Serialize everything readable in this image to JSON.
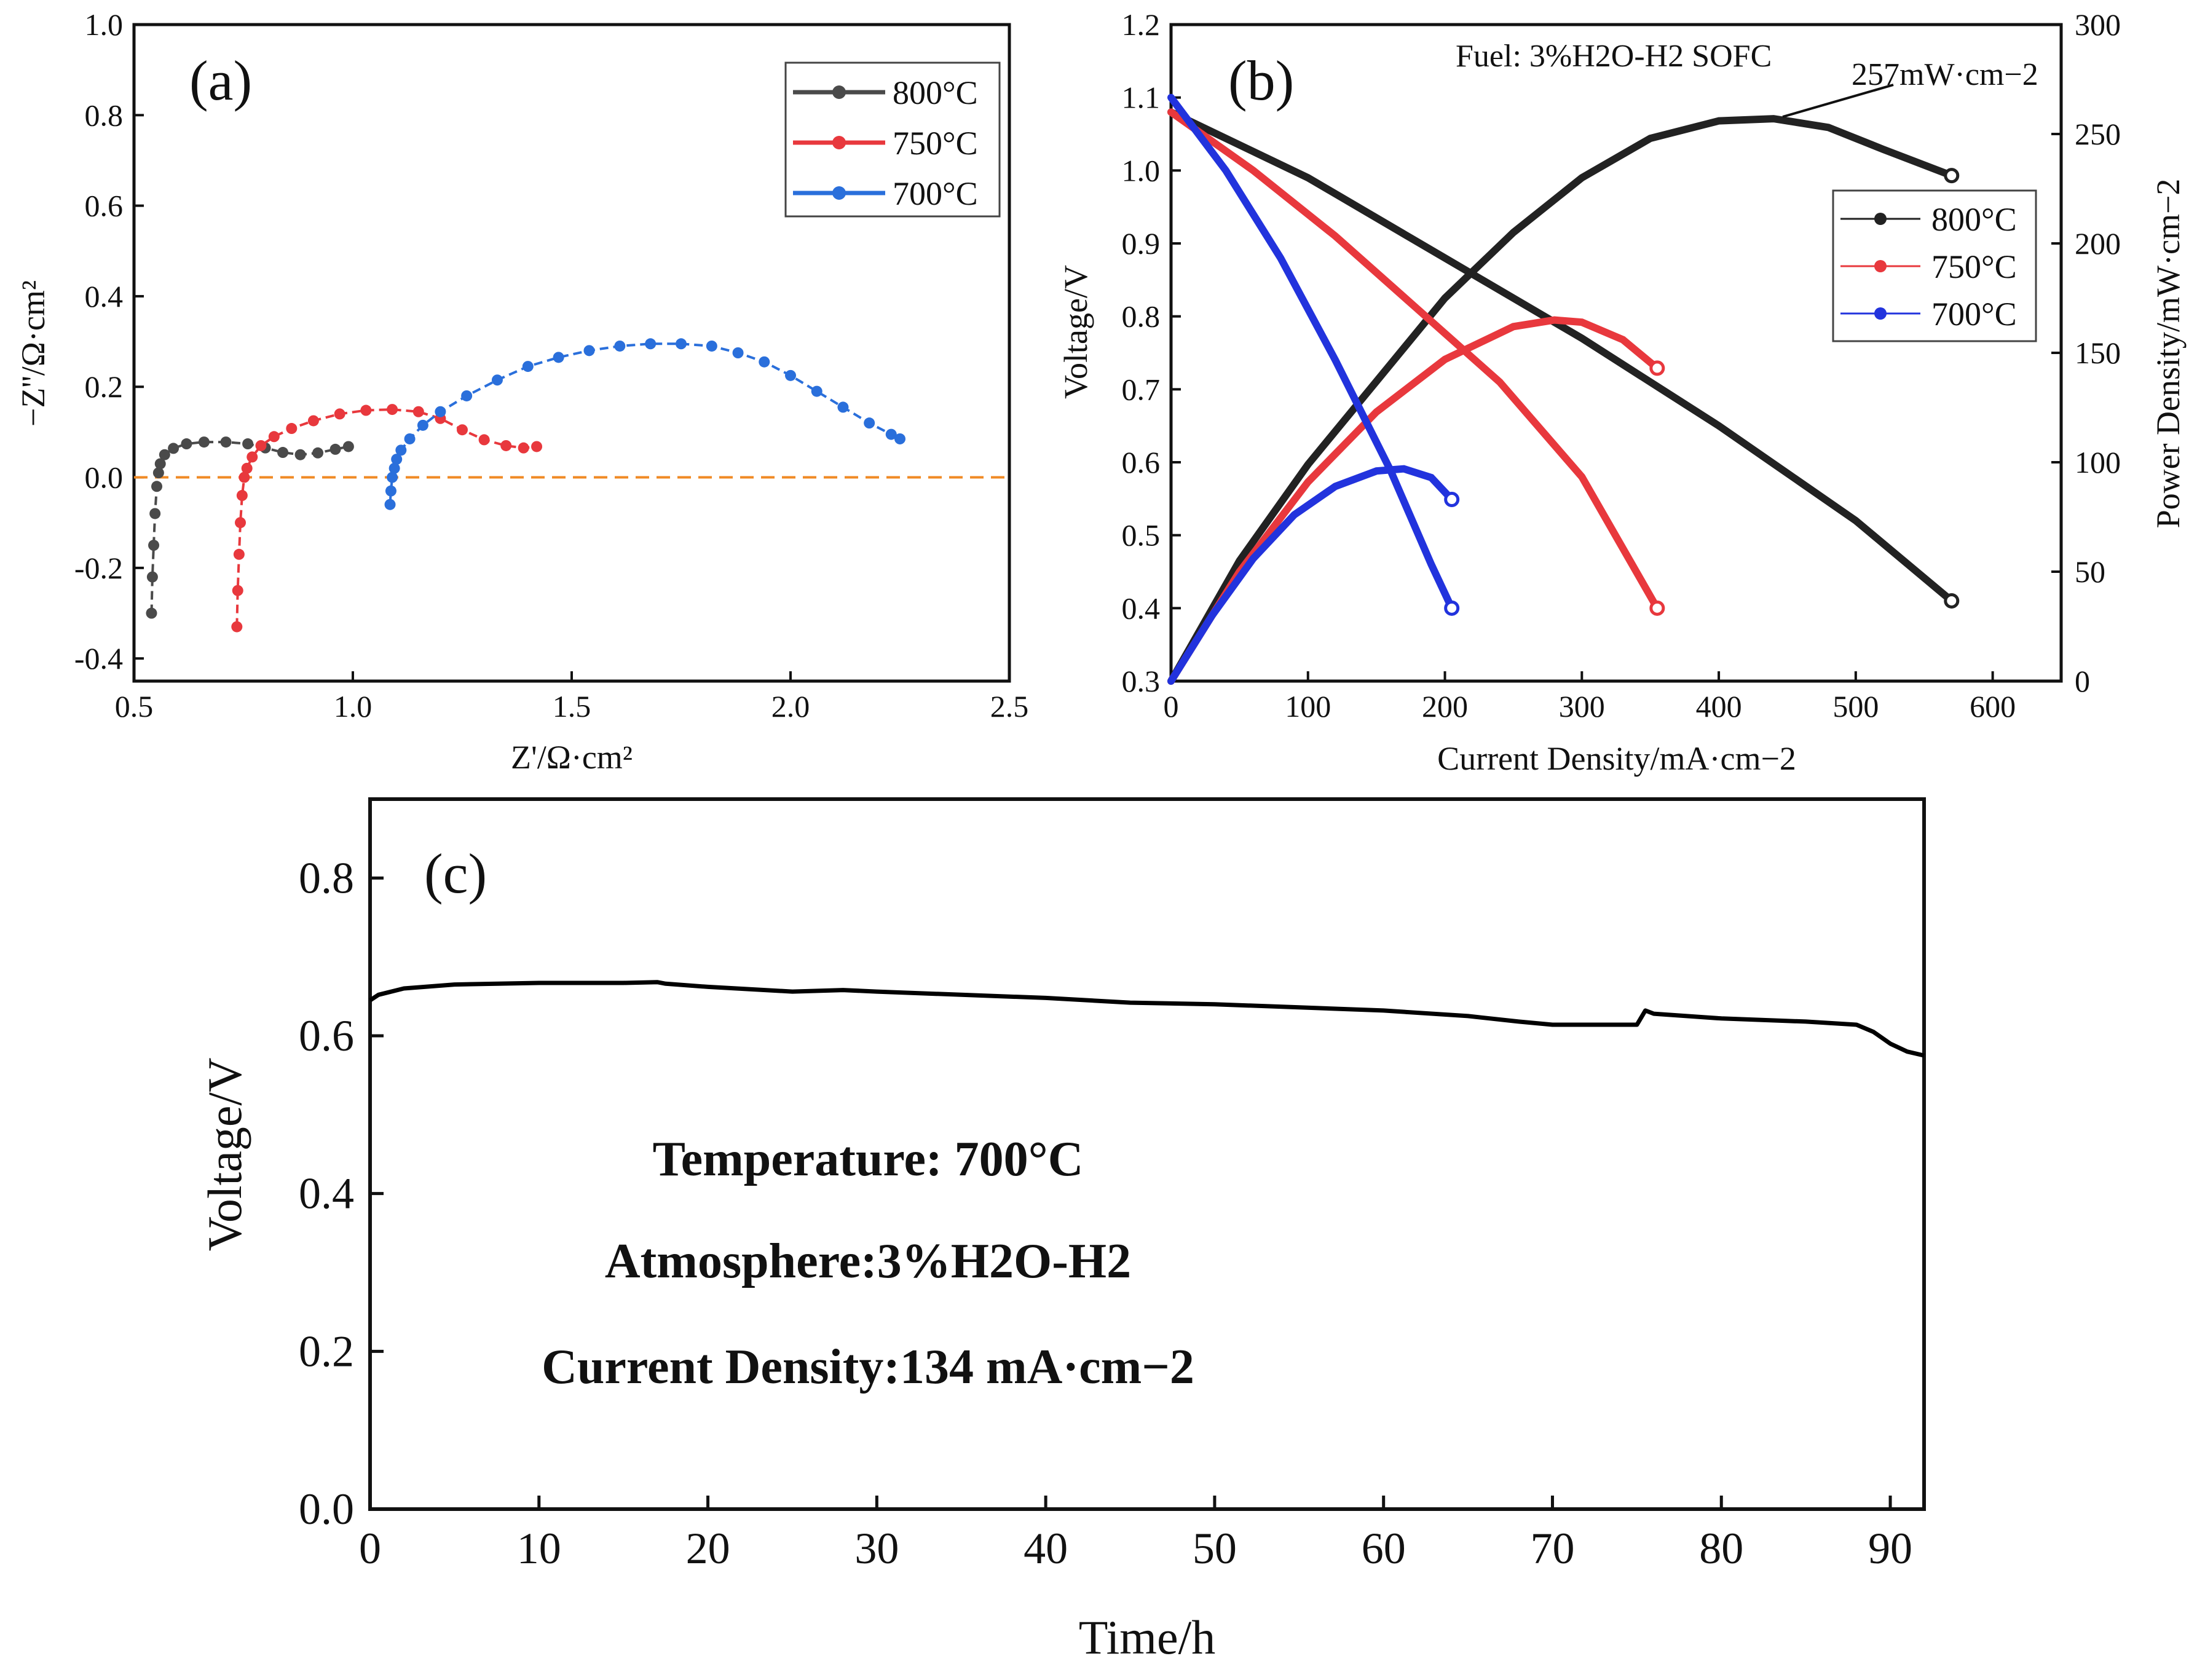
{
  "chart_data": [
    {
      "panel": "(a)",
      "type": "scatter",
      "title": "",
      "xlabel": "Z'/Ω·cm²",
      "ylabel": "−Z''/Ω·cm²",
      "xlim": [
        0.5,
        2.5
      ],
      "ylim": [
        -0.45,
        1.0
      ],
      "xticks": [
        "0.5",
        "1.0",
        "1.5",
        "2.0",
        "2.5"
      ],
      "yticks": [
        "-0.4",
        "-0.2",
        "0.0",
        "0.2",
        "0.4",
        "0.6",
        "0.8",
        "1.0"
      ],
      "reference_line": {
        "y": 0.0,
        "color": "#f08a24",
        "style": "dashed"
      },
      "legend": {
        "position": "top-right",
        "entries": [
          "800°C",
          "750°C",
          "700°C"
        ]
      },
      "series": [
        {
          "name": "800°C",
          "color": "#4a4a4a",
          "x": [
            0.54,
            0.542,
            0.545,
            0.548,
            0.552,
            0.556,
            0.56,
            0.57,
            0.59,
            0.62,
            0.66,
            0.71,
            0.76,
            0.8,
            0.84,
            0.88,
            0.92,
            0.96,
            0.99
          ],
          "y": [
            -0.3,
            -0.22,
            -0.15,
            -0.08,
            -0.02,
            0.01,
            0.03,
            0.05,
            0.064,
            0.074,
            0.078,
            0.078,
            0.074,
            0.065,
            0.055,
            0.05,
            0.054,
            0.062,
            0.068
          ]
        },
        {
          "name": "750°C",
          "color": "#e8383d",
          "x": [
            0.735,
            0.737,
            0.74,
            0.743,
            0.747,
            0.752,
            0.758,
            0.77,
            0.79,
            0.82,
            0.86,
            0.91,
            0.97,
            1.03,
            1.09,
            1.15,
            1.2,
            1.25,
            1.3,
            1.35,
            1.39,
            1.42
          ],
          "y": [
            -0.33,
            -0.25,
            -0.17,
            -0.1,
            -0.04,
            0.0,
            0.02,
            0.045,
            0.07,
            0.09,
            0.108,
            0.125,
            0.14,
            0.148,
            0.15,
            0.145,
            0.13,
            0.105,
            0.083,
            0.07,
            0.065,
            0.068
          ]
        },
        {
          "name": "700°C",
          "color": "#2a6fdb",
          "x": [
            1.085,
            1.087,
            1.09,
            1.095,
            1.1,
            1.11,
            1.13,
            1.16,
            1.2,
            1.26,
            1.33,
            1.4,
            1.47,
            1.54,
            1.61,
            1.68,
            1.75,
            1.82,
            1.88,
            1.94,
            2.0,
            2.06,
            2.12,
            2.18,
            2.23,
            2.25
          ],
          "y": [
            -0.06,
            -0.03,
            0.0,
            0.02,
            0.04,
            0.06,
            0.085,
            0.115,
            0.145,
            0.18,
            0.215,
            0.245,
            0.265,
            0.28,
            0.29,
            0.295,
            0.295,
            0.29,
            0.275,
            0.255,
            0.225,
            0.19,
            0.155,
            0.12,
            0.095,
            0.085
          ]
        }
      ]
    },
    {
      "panel": "(b)",
      "type": "line",
      "title": "Fuel: 3%H2O-H2  SOFC",
      "xlabel": "Current Density/mA·cm−2",
      "ylabel": "Voltage/V",
      "ylabel_right": "Power Density/mW·cm−2",
      "xlim": [
        0,
        650
      ],
      "ylim": [
        0.3,
        1.2
      ],
      "ylim_right": [
        0,
        300
      ],
      "xticks": [
        "0",
        "100",
        "200",
        "300",
        "400",
        "500",
        "600"
      ],
      "yticks": [
        "0.3",
        "0.4",
        "0.5",
        "0.6",
        "0.7",
        "0.8",
        "0.9",
        "1.0",
        "1.1",
        "1.2"
      ],
      "yticks_right": [
        "0",
        "50",
        "100",
        "150",
        "200",
        "250",
        "300"
      ],
      "annotation": "257mW·cm−2",
      "legend": {
        "position": "right",
        "entries": [
          "800°C",
          "750°C",
          "700°C"
        ]
      },
      "series": [
        {
          "name": "800°C",
          "color": "#222222",
          "voltage": {
            "x": [
              0,
              100,
              200,
              300,
              400,
              500,
              570
            ],
            "y": [
              1.08,
              0.99,
              0.88,
              0.77,
              0.65,
              0.52,
              0.41
            ]
          },
          "power": {
            "x": [
              0,
              50,
              100,
              150,
              200,
              250,
              300,
              350,
              400,
              440,
              480,
              520,
              570
            ],
            "y": [
              0,
              55,
              99,
              137,
              175,
              205,
              230,
              248,
              256,
              257,
              253,
              243,
              231
            ]
          }
        },
        {
          "name": "750°C",
          "color": "#e8383d",
          "voltage": {
            "x": [
              0,
              60,
              120,
              180,
              240,
              300,
              355
            ],
            "y": [
              1.08,
              1.0,
              0.91,
              0.81,
              0.71,
              0.58,
              0.4
            ]
          },
          "power": {
            "x": [
              0,
              50,
              100,
              150,
              200,
              250,
              280,
              300,
              330,
              355
            ],
            "y": [
              0,
              50,
              91,
              123,
              147,
              162,
              165,
              164,
              156,
              143
            ]
          }
        },
        {
          "name": "700°C",
          "color": "#2233dd",
          "voltage": {
            "x": [
              0,
              40,
              80,
              120,
              160,
              190,
              205
            ],
            "y": [
              1.1,
              1.0,
              0.88,
              0.74,
              0.59,
              0.46,
              0.4
            ]
          },
          "power": {
            "x": [
              0,
              30,
              60,
              90,
              120,
              150,
              170,
              190,
              205
            ],
            "y": [
              0,
              30,
              56,
              76,
              89,
              96,
              97,
              93,
              83
            ]
          }
        }
      ]
    },
    {
      "panel": "(c)",
      "type": "line",
      "title": "",
      "xlabel": "Time/h",
      "ylabel": "Voltage/V",
      "xlim": [
        0,
        92
      ],
      "ylim": [
        0.0,
        0.9
      ],
      "xticks": [
        "0",
        "10",
        "20",
        "30",
        "40",
        "50",
        "60",
        "70",
        "80",
        "90"
      ],
      "yticks": [
        "0.0",
        "0.2",
        "0.4",
        "0.6",
        "0.8"
      ],
      "annotations": [
        "Temperature: 700°C",
        "Atmosphere:3%H2O-H2",
        "Current Density:134 mA·cm−2"
      ],
      "series": [
        {
          "name": "voltage",
          "color": "#000000",
          "x": [
            0,
            0.5,
            2,
            5,
            10,
            15,
            17,
            17.5,
            20,
            25,
            28,
            30,
            35,
            40,
            45,
            50,
            55,
            60,
            65,
            68,
            70,
            75,
            75.5,
            76,
            80,
            85,
            88,
            89,
            90,
            91,
            92
          ],
          "y": [
            0.645,
            0.652,
            0.66,
            0.665,
            0.667,
            0.667,
            0.668,
            0.666,
            0.662,
            0.656,
            0.658,
            0.656,
            0.652,
            0.648,
            0.642,
            0.64,
            0.636,
            0.632,
            0.625,
            0.618,
            0.614,
            0.614,
            0.632,
            0.628,
            0.622,
            0.618,
            0.614,
            0.605,
            0.59,
            0.58,
            0.575
          ]
        }
      ]
    }
  ]
}
